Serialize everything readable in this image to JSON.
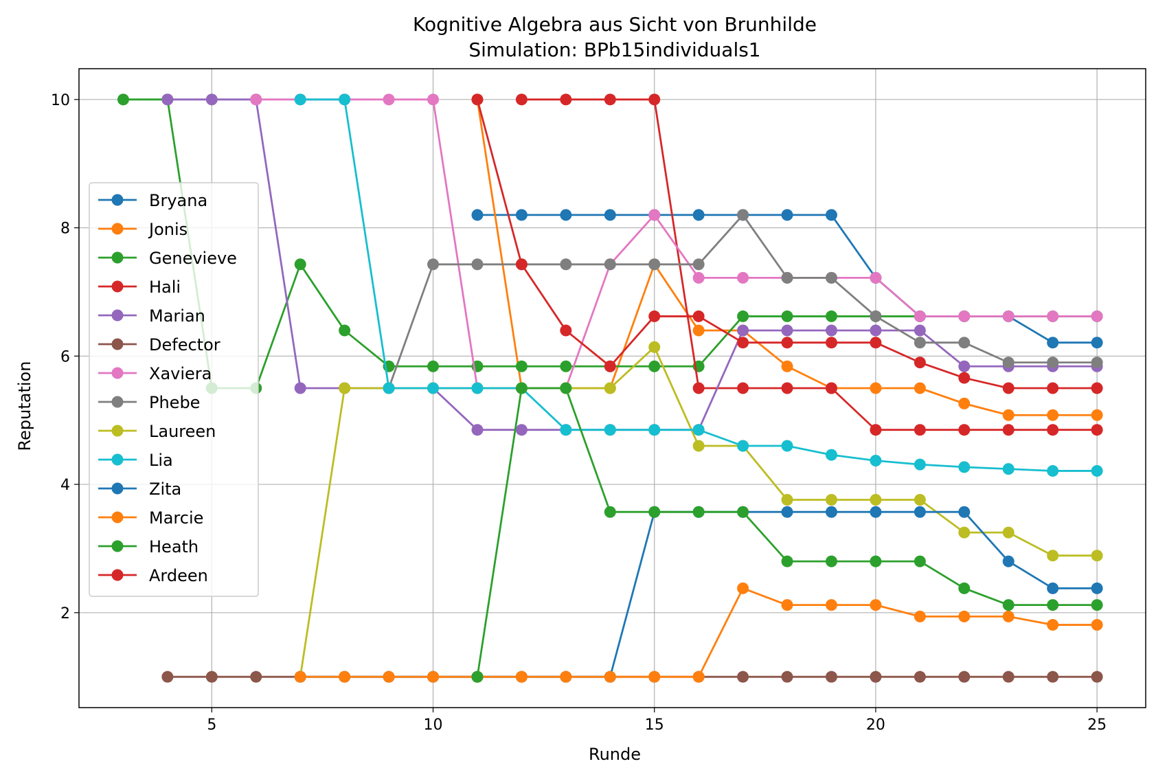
{
  "chart_data": {
    "type": "line",
    "title": "Kognitive Algebra aus Sicht von Brunhilde",
    "subtitle": "Simulation: BPb15individuals1",
    "xlabel": "Runde",
    "ylabel": "Reputation",
    "xlim": [
      2,
      26.1
    ],
    "ylim": [
      0.52,
      10.48
    ],
    "xticks": [
      5,
      10,
      15,
      20,
      25
    ],
    "yticks": [
      2,
      4,
      6,
      8,
      10
    ],
    "grid": true,
    "legend_position": "center-left",
    "series": [
      {
        "name": "Bryana",
        "color": "#1f77b4",
        "x": [
          11,
          12,
          13,
          14,
          15,
          16,
          17,
          18,
          19,
          20,
          21,
          22,
          23,
          24,
          25
        ],
        "y": [
          8.2,
          8.2,
          8.2,
          8.2,
          8.2,
          8.2,
          8.2,
          8.2,
          8.2,
          7.22,
          6.62,
          6.62,
          6.62,
          6.21,
          6.21
        ]
      },
      {
        "name": "Jonis",
        "color": "#ff7f0e",
        "x": [
          11,
          12,
          13,
          14,
          15,
          16,
          17,
          18,
          19,
          20,
          21,
          22,
          23,
          24,
          25
        ],
        "y": [
          10,
          5.5,
          5.5,
          5.5,
          7.43,
          6.4,
          6.4,
          5.84,
          5.5,
          5.5,
          5.5,
          5.26,
          5.08,
          5.08,
          5.08
        ]
      },
      {
        "name": "Genevieve",
        "color": "#2ca02c",
        "x": [
          3,
          4,
          5,
          6,
          7,
          8,
          9,
          10,
          11,
          12,
          13,
          14,
          15,
          16,
          17,
          18,
          19,
          20,
          21,
          22,
          23,
          24,
          25
        ],
        "y": [
          10,
          10,
          5.5,
          5.5,
          7.43,
          6.4,
          5.84,
          5.84,
          5.84,
          5.84,
          5.84,
          5.84,
          5.84,
          5.84,
          6.62,
          6.62,
          6.62,
          6.62,
          6.62,
          6.62,
          6.62,
          6.62,
          6.62
        ]
      },
      {
        "name": "Hali",
        "color": "#d62728",
        "x": [
          12,
          13,
          14,
          15,
          16,
          17,
          18,
          19,
          20,
          21,
          22,
          23,
          24,
          25
        ],
        "y": [
          10,
          10,
          10,
          10,
          5.5,
          5.5,
          5.5,
          5.5,
          4.85,
          4.85,
          4.85,
          4.85,
          4.85,
          4.85
        ]
      },
      {
        "name": "Marian",
        "color": "#9467bd",
        "x": [
          4,
          5,
          6,
          7,
          8,
          9,
          10,
          11,
          12,
          13,
          14,
          15,
          16,
          17,
          18,
          19,
          20,
          21,
          22,
          23,
          24,
          25
        ],
        "y": [
          10,
          10,
          10,
          5.5,
          5.5,
          5.5,
          5.5,
          4.85,
          4.85,
          4.85,
          4.85,
          4.85,
          4.85,
          6.4,
          6.4,
          6.4,
          6.4,
          6.4,
          5.84,
          5.84,
          5.84,
          5.84
        ]
      },
      {
        "name": "Defector",
        "color": "#8c564b",
        "x": [
          4,
          5,
          6,
          7,
          8,
          9,
          10,
          11,
          12,
          13,
          14,
          15,
          16,
          17,
          18,
          19,
          20,
          21,
          22,
          23,
          24,
          25
        ],
        "y": [
          1,
          1,
          1,
          1,
          1,
          1,
          1,
          1,
          1,
          1,
          1,
          1,
          1,
          1,
          1,
          1,
          1,
          1,
          1,
          1,
          1,
          1
        ]
      },
      {
        "name": "Xaviera",
        "color": "#e377c2",
        "x": [
          6,
          7,
          8,
          9,
          10,
          11,
          12,
          13,
          14,
          15,
          16,
          17,
          18,
          19,
          20,
          21,
          22,
          23,
          24,
          25
        ],
        "y": [
          10,
          10,
          10,
          10,
          10,
          5.5,
          5.5,
          5.5,
          7.43,
          8.2,
          7.22,
          7.22,
          7.22,
          7.22,
          7.22,
          6.62,
          6.62,
          6.62,
          6.62,
          6.62
        ]
      },
      {
        "name": "Phebe",
        "color": "#7f7f7f",
        "x": [
          9,
          10,
          11,
          12,
          13,
          14,
          15,
          16,
          17,
          18,
          19,
          20,
          21,
          22,
          23,
          24,
          25
        ],
        "y": [
          5.5,
          7.43,
          7.43,
          7.43,
          7.43,
          7.43,
          7.43,
          7.43,
          8.2,
          7.22,
          7.22,
          6.62,
          6.21,
          6.21,
          5.9,
          5.9,
          5.9
        ]
      },
      {
        "name": "Laureen",
        "color": "#bcbd22",
        "x": [
          7,
          8,
          9,
          10,
          11,
          12,
          13,
          14,
          15,
          16,
          17,
          18,
          19,
          20,
          21,
          22,
          23,
          24,
          25
        ],
        "y": [
          1,
          5.5,
          5.5,
          5.5,
          5.5,
          5.5,
          5.5,
          5.5,
          6.14,
          4.6,
          4.6,
          3.76,
          3.76,
          3.76,
          3.76,
          3.25,
          3.25,
          2.89,
          2.89
        ]
      },
      {
        "name": "Lia",
        "color": "#17becf",
        "x": [
          7,
          8,
          9,
          10,
          11,
          12,
          13,
          14,
          15,
          16,
          17,
          18,
          19,
          20,
          21,
          22,
          23,
          24,
          25
        ],
        "y": [
          10,
          10,
          5.5,
          5.5,
          5.5,
          5.5,
          4.85,
          4.85,
          4.85,
          4.85,
          4.6,
          4.6,
          4.46,
          4.37,
          4.31,
          4.27,
          4.24,
          4.21,
          4.21
        ]
      },
      {
        "name": "Zita",
        "color": "#1f77b4",
        "x": [
          7,
          8,
          9,
          10,
          11,
          12,
          13,
          14,
          15,
          16,
          17,
          18,
          19,
          20,
          21,
          22,
          23,
          24,
          25
        ],
        "y": [
          1,
          1,
          1,
          1,
          1,
          1,
          1,
          1,
          3.57,
          3.57,
          3.57,
          3.57,
          3.57,
          3.57,
          3.57,
          3.57,
          2.8,
          2.38,
          2.38
        ]
      },
      {
        "name": "Marcie",
        "color": "#ff7f0e",
        "x": [
          7,
          8,
          9,
          10,
          11,
          12,
          13,
          14,
          15,
          16,
          17,
          18,
          19,
          20,
          21,
          22,
          23,
          24,
          25
        ],
        "y": [
          1,
          1,
          1,
          1,
          1,
          1,
          1,
          1,
          1,
          1,
          2.38,
          2.12,
          2.12,
          2.12,
          1.94,
          1.94,
          1.94,
          1.81,
          1.81
        ]
      },
      {
        "name": "Heath",
        "color": "#2ca02c",
        "x": [
          11,
          12,
          13,
          14,
          15,
          16,
          17,
          18,
          19,
          20,
          21,
          22,
          23,
          24,
          25
        ],
        "y": [
          1,
          5.5,
          5.5,
          3.57,
          3.57,
          3.57,
          3.57,
          2.8,
          2.8,
          2.8,
          2.8,
          2.38,
          2.12,
          2.12,
          2.12
        ]
      },
      {
        "name": "Ardeen",
        "color": "#d62728",
        "x": [
          11,
          12,
          13,
          14,
          15,
          16,
          17,
          18,
          19,
          20,
          21,
          22,
          23,
          24,
          25
        ],
        "y": [
          10,
          7.43,
          6.4,
          5.84,
          6.62,
          6.62,
          6.21,
          6.21,
          6.21,
          6.21,
          5.9,
          5.66,
          5.5,
          5.5,
          5.5
        ]
      }
    ]
  }
}
